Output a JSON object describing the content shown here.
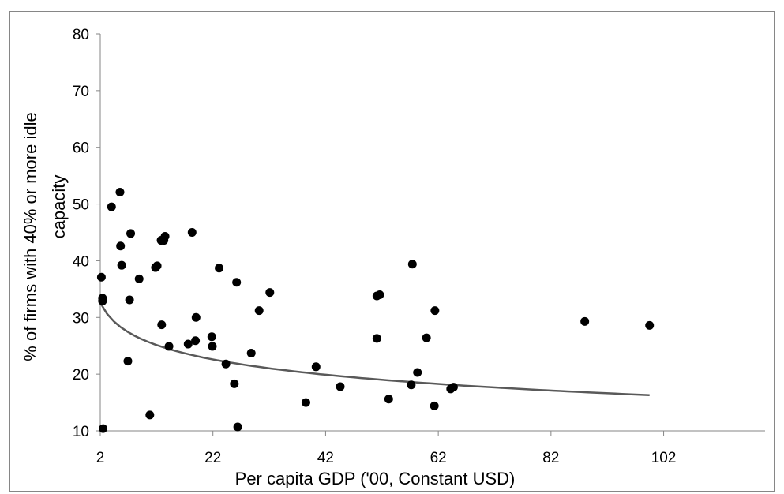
{
  "chart_data": {
    "type": "scatter",
    "title": "",
    "xlabel": "Per capita GDP ('00, Constant USD)",
    "ylabel_lines": [
      "% of firms with 40% or more idle",
      "capacity"
    ],
    "xlim": [
      2,
      120
    ],
    "ylim": [
      10,
      80
    ],
    "x_ticks": [
      2,
      22,
      42,
      62,
      82,
      102
    ],
    "y_ticks": [
      10,
      20,
      30,
      40,
      50,
      60,
      70,
      80
    ],
    "grid": false,
    "legend": "none",
    "colors": {
      "points": "#000000",
      "trend": "#595959",
      "axis": "#868686",
      "border": "#868686"
    },
    "points": [
      [
        2.2,
        37.1
      ],
      [
        2.4,
        33.4
      ],
      [
        2.4,
        32.9
      ],
      [
        2.5,
        10.4
      ],
      [
        4.0,
        49.5
      ],
      [
        5.5,
        52.1
      ],
      [
        5.6,
        42.6
      ],
      [
        5.8,
        39.2
      ],
      [
        6.9,
        22.3
      ],
      [
        7.2,
        33.1
      ],
      [
        7.4,
        44.8
      ],
      [
        8.9,
        36.8
      ],
      [
        10.8,
        12.8
      ],
      [
        11.8,
        38.8
      ],
      [
        12.1,
        39.1
      ],
      [
        12.8,
        43.6
      ],
      [
        12.9,
        28.7
      ],
      [
        13.3,
        43.6
      ],
      [
        13.5,
        44.3
      ],
      [
        14.2,
        24.9
      ],
      [
        17.6,
        25.3
      ],
      [
        18.3,
        45.0
      ],
      [
        18.9,
        25.9
      ],
      [
        19.0,
        30.0
      ],
      [
        21.8,
        26.6
      ],
      [
        21.9,
        24.9
      ],
      [
        23.1,
        38.7
      ],
      [
        24.3,
        21.8
      ],
      [
        25.8,
        18.3
      ],
      [
        26.2,
        36.2
      ],
      [
        26.4,
        10.7
      ],
      [
        28.8,
        23.7
      ],
      [
        30.2,
        31.2
      ],
      [
        32.1,
        34.4
      ],
      [
        38.5,
        15.0
      ],
      [
        40.3,
        21.3
      ],
      [
        44.6,
        17.8
      ],
      [
        51.1,
        26.3
      ],
      [
        51.1,
        33.8
      ],
      [
        51.6,
        34.0
      ],
      [
        53.2,
        15.6
      ],
      [
        57.2,
        18.1
      ],
      [
        57.4,
        39.4
      ],
      [
        58.3,
        20.3
      ],
      [
        59.9,
        26.4
      ],
      [
        61.3,
        14.4
      ],
      [
        61.4,
        31.2
      ],
      [
        64.2,
        17.4
      ],
      [
        64.7,
        17.7
      ],
      [
        88.0,
        29.3
      ],
      [
        99.5,
        28.6
      ]
    ],
    "trendline": {
      "type": "logarithmic",
      "x_range": [
        2,
        99.5
      ],
      "y_at_start": 32.6,
      "y_at_end": 16.3
    }
  }
}
